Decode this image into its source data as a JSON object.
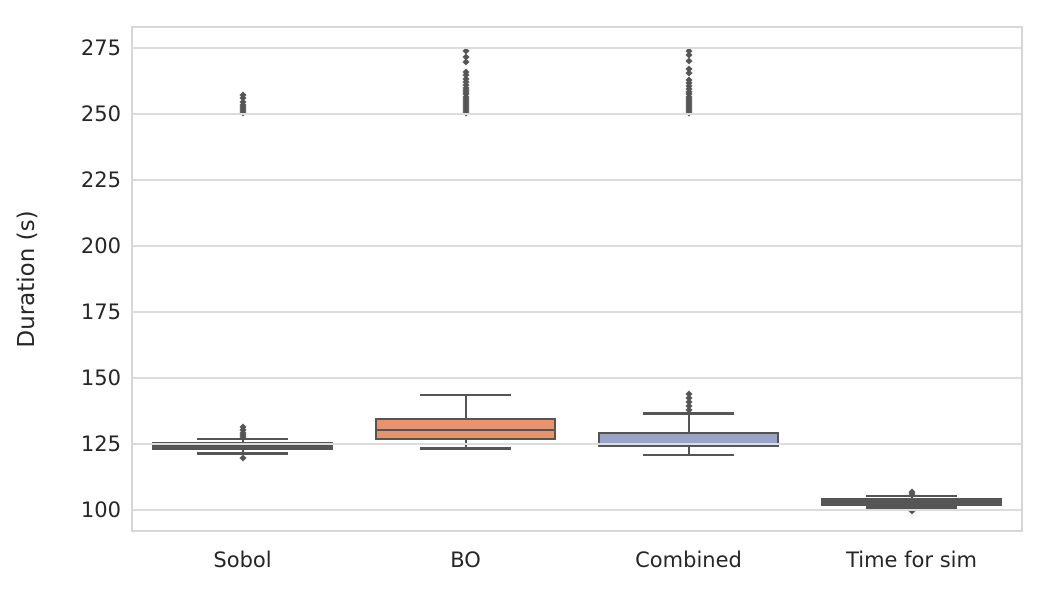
{
  "chart_data": {
    "type": "box",
    "title": "",
    "xlabel": "",
    "ylabel": "Duration (s)",
    "ylim": [
      91.7,
      283.3
    ],
    "yticks": [
      100,
      125,
      150,
      175,
      200,
      225,
      250,
      275
    ],
    "grid": "horizontal",
    "legend": "none",
    "categories": [
      "Sobol",
      "BO",
      "Combined",
      "Time for sim"
    ],
    "colors": {
      "element_dark": "#555555",
      "grid": "#dcdcdc",
      "axes_border": "#d6d6d6",
      "tick_label": "#262626",
      "background": "#ffffff"
    },
    "boxes": [
      {
        "label": "Sobol",
        "fill": "#575757",
        "whisker_low": 121.4,
        "q1": 122.7,
        "median": 124.2,
        "q3": 125.9,
        "whisker_high": 126.9,
        "outliers": [
          119.9,
          127.5,
          128.3,
          129.2,
          130.2,
          131.3,
          250.3,
          251.0,
          251.8,
          252.6,
          253.5,
          254.5,
          256.0,
          257.0
        ]
      },
      {
        "label": "BO",
        "fill": "#e9926f",
        "whisker_low": 123.3,
        "q1": 126.5,
        "median": 130.3,
        "q3": 135.0,
        "whisker_high": 143.5,
        "outliers": [
          250.2,
          251.0,
          251.8,
          252.6,
          253.4,
          254.2,
          255.0,
          255.8,
          256.6,
          257.4,
          258.2,
          259.0,
          260.0,
          261.0,
          262.2,
          263.4,
          264.6,
          266.0,
          269.5,
          271.5,
          274.0
        ]
      },
      {
        "label": "Combined",
        "fill": "#97a3c9",
        "whisker_low": 120.8,
        "q1": 124.0,
        "median": 124.8,
        "q3": 129.7,
        "whisker_high": 136.5,
        "outliers": [
          138.0,
          139.5,
          141.0,
          142.5,
          143.8,
          250.2,
          251.0,
          251.8,
          252.6,
          253.4,
          254.2,
          255.0,
          255.8,
          256.6,
          257.4,
          258.4,
          259.4,
          260.5,
          261.8,
          263.0,
          265.5,
          267.0,
          270.0,
          272.5,
          274.0
        ]
      },
      {
        "label": "Time for sim",
        "fill": "#575757",
        "whisker_low": 100.9,
        "q1": 101.7,
        "median": 103.0,
        "q3": 104.5,
        "whisker_high": 105.3,
        "outliers": [
          99.5,
          106.2,
          106.9
        ]
      }
    ]
  }
}
